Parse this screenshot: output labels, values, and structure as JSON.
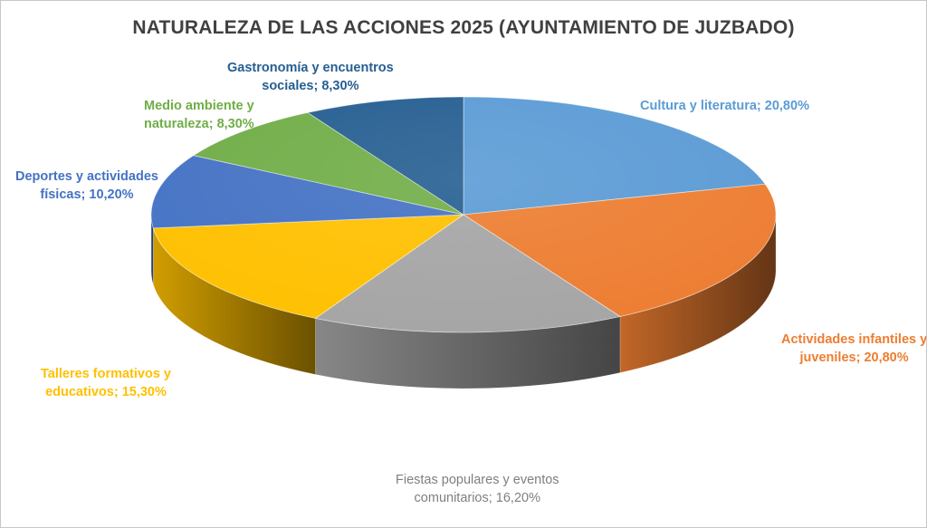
{
  "chart_data": {
    "type": "pie",
    "title": "NATURALEZA DE LAS ACCIONES 2025 (AYUNTAMIENTO DE JUZBADO)",
    "slices": [
      {
        "label": "Cultura y literatura",
        "value": 20.8,
        "value_label": "20,80%",
        "color": "#5b9bd5",
        "label_lines": [
          "Cultura y literatura; 20,80%"
        ]
      },
      {
        "label": "Actividades infantiles y juveniles",
        "value": 20.8,
        "value_label": "20,80%",
        "color": "#ed7d31",
        "label_lines": [
          "Actividades infantiles y",
          "juveniles; 20,80%"
        ]
      },
      {
        "label": "Fiestas populares y eventos comunitarios",
        "value": 16.2,
        "value_label": "16,20%",
        "color": "#a5a5a5",
        "label_lines": [
          "Fiestas populares y eventos",
          "comunitarios; 16,20%"
        ]
      },
      {
        "label": "Talleres formativos y educativos",
        "value": 15.3,
        "value_label": "15,30%",
        "color": "#ffc000",
        "label_lines": [
          "Talleres formativos y",
          "educativos; 15,30%"
        ]
      },
      {
        "label": "Deportes y actividades físicas",
        "value": 10.2,
        "value_label": "10,20%",
        "color": "#4472c4",
        "label_lines": [
          "Deportes y actividades",
          "físicas; 10,20%"
        ]
      },
      {
        "label": "Medio ambiente y naturaleza",
        "value": 8.3,
        "value_label": "8,30%",
        "color": "#70ad47",
        "label_lines": [
          "Medio ambiente y",
          "naturaleza; 8,30%"
        ]
      },
      {
        "label": "Gastronomía y encuentros sociales",
        "value": 8.3,
        "value_label": "8,30%",
        "color": "#255e91",
        "label_lines": [
          "Gastronomía y encuentros",
          "sociales; 8,30%"
        ]
      }
    ],
    "legend": "none",
    "data_labels": "outside"
  }
}
